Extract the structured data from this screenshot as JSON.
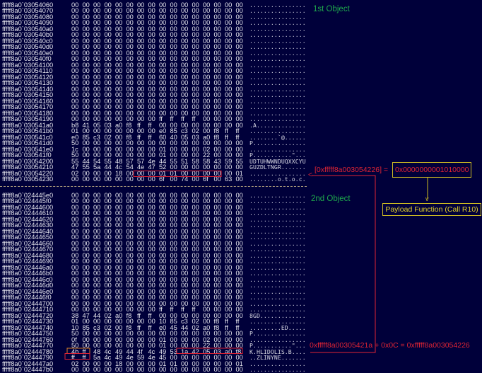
{
  "colors": {
    "background": "#00003a",
    "hex_text": "#e6e6ee",
    "annotation_red": "#e02434",
    "annotation_green": "#1ea84c",
    "annotation_yellow": "#cdbb22",
    "highlight_orange": "#d8822a"
  },
  "first_object": {
    "label": "1st Object",
    "rows": [
      {
        "addr": "fffff8a0`03054060",
        "bytes": "00 00 00 00 00 00 00 00 00 00 00 00 00 00 00 00",
        "ascii": "................"
      },
      {
        "addr": "fffff8a0`03054070",
        "bytes": "00 00 00 00 00 00 00 00 00 00 00 00 00 00 00 00",
        "ascii": "................"
      },
      {
        "addr": "fffff8a0`03054080",
        "bytes": "00 00 00 00 00 00 00 00 00 00 00 00 00 00 00 00",
        "ascii": "................"
      },
      {
        "addr": "fffff8a0`03054090",
        "bytes": "00 00 00 00 00 00 00 00 00 00 00 00 00 00 00 00",
        "ascii": "................"
      },
      {
        "addr": "fffff8a0`030540a0",
        "bytes": "00 00 00 00 00 00 00 00 00 00 00 00 00 00 00 00",
        "ascii": "................"
      },
      {
        "addr": "fffff8a0`030540b0",
        "bytes": "00 00 00 00 00 00 00 00 00 00 00 00 00 00 00 00",
        "ascii": "................"
      },
      {
        "addr": "fffff8a0`030540c0",
        "bytes": "00 00 00 00 00 00 00 00 00 00 00 00 00 00 00 00",
        "ascii": "................"
      },
      {
        "addr": "fffff8a0`030540d0",
        "bytes": "00 00 00 00 00 00 00 00 00 00 00 00 00 00 00 00",
        "ascii": "................"
      },
      {
        "addr": "fffff8a0`030540e0",
        "bytes": "00 00 00 00 00 00 00 00 00 00 00 00 00 00 00 00",
        "ascii": "................"
      },
      {
        "addr": "fffff8a0`030540f0",
        "bytes": "00 00 00 00 00 00 00 00 00 00 00 00 00 00 00 00",
        "ascii": "................"
      },
      {
        "addr": "fffff8a0`03054100",
        "bytes": "00 00 00 00 00 00 00 00 00 00 00 00 00 00 00 00",
        "ascii": "................"
      },
      {
        "addr": "fffff8a0`03054110",
        "bytes": "00 00 00 00 00 00 00 00 00 00 00 00 00 00 00 00",
        "ascii": "................"
      },
      {
        "addr": "fffff8a0`03054120",
        "bytes": "00 00 00 00 00 00 00 00 00 00 00 00 00 00 00 00",
        "ascii": "................"
      },
      {
        "addr": "fffff8a0`03054130",
        "bytes": "00 00 00 00 00 00 00 00 00 00 00 00 00 00 00 00",
        "ascii": "................"
      },
      {
        "addr": "fffff8a0`03054140",
        "bytes": "00 00 00 00 00 00 00 00 00 00 00 00 00 00 00 00",
        "ascii": "................"
      },
      {
        "addr": "fffff8a0`03054150",
        "bytes": "00 00 00 00 00 00 00 00 00 00 00 00 00 00 00 00",
        "ascii": "................"
      },
      {
        "addr": "fffff8a0`03054160",
        "bytes": "00 00 00 00 00 00 00 00 00 00 00 00 00 00 00 00",
        "ascii": "................"
      },
      {
        "addr": "fffff8a0`03054170",
        "bytes": "00 00 00 00 00 00 00 00 00 00 00 00 00 00 00 00",
        "ascii": "................"
      },
      {
        "addr": "fffff8a0`03054180",
        "bytes": "00 00 00 00 00 00 00 00 00 00 00 00 00 00 00 00",
        "ascii": "................"
      },
      {
        "addr": "fffff8a0`03054190",
        "bytes": "00 00 00 00 00 00 00 00 ff ff ff ff 00 00 00 00",
        "ascii": "................"
      },
      {
        "addr": "fffff8a0`030541a0",
        "bytes": "b8 41 05 03 a0 f8 ff ff 00 00 00 00 00 00 00 00",
        "ascii": ".A.............."
      },
      {
        "addr": "fffff8a0`030541b0",
        "bytes": "01 00 00 00 00 00 00 00 e0 85 c3 02 00 f8 ff ff",
        "ascii": "................"
      },
      {
        "addr": "fffff8a0`030541c0",
        "bytes": "e0 85 c3 02 00 f8 ff ff 60 40 05 03 a0 f8 ff ff",
        "ascii": "........`@......"
      },
      {
        "addr": "fffff8a0`030541d0",
        "bytes": "50 00 00 00 00 00 00 00 00 00 00 00 00 00 00 00",
        "ascii": "P..............."
      },
      {
        "addr": "fffff8a0`030541e0",
        "bytes": "1c 00 00 00 00 00 00 00 01 00 00 00 02 00 00 00",
        "ascii": "................"
      },
      {
        "addr": "fffff8a0`030541f0",
        "bytes": "50 00 00 00 00 00 00 00 01 00 00 00 22 00 00 00",
        "ascii": "P...........\"..."
      },
      {
        "addr": "fffff8a0`03054200",
        "bytes": "55 44 54 55 48 57 57 4e 44 55 51 58 58 43 59 55",
        "ascii": "UDTUHWWNDUQXXCYU"
      },
      {
        "addr": "fffff8a0`03054210",
        "bytes": "47 55 5a 44 4c 54 4e 47 52 00 00 00 00 00 00 00",
        "ascii": "GUZDLTNGR......."
      },
      {
        "addr": "fffff8a0`03054220",
        "bytes": "02 00 00 00 18 00 00 00 01 01 00 00 00 00 00 01",
        "ascii": "................"
      },
      {
        "addr": "fffff8a0`03054230",
        "bytes": "00 00 00 00 00 00 00 00 6f 00 74 00 6f 00 63 00",
        "ascii": "........o.t.o.c."
      }
    ]
  },
  "second_object": {
    "label": "2nd Object",
    "rows": [
      {
        "addr": "fffff8a0`024445e0",
        "bytes": "00 00 00 00 00 00 00 00 00 00 00 00 00 00 00 00",
        "ascii": "................"
      },
      {
        "addr": "fffff8a0`024445f0",
        "bytes": "00 00 00 00 00 00 00 00 00 00 00 00 00 00 00 00",
        "ascii": "................"
      },
      {
        "addr": "fffff8a0`02444600",
        "bytes": "00 00 00 00 00 00 00 00 00 00 00 00 00 00 00 00",
        "ascii": "................"
      },
      {
        "addr": "fffff8a0`02444610",
        "bytes": "00 00 00 00 00 00 00 00 00 00 00 00 00 00 00 00",
        "ascii": "................"
      },
      {
        "addr": "fffff8a0`02444620",
        "bytes": "00 00 00 00 00 00 00 00 00 00 00 00 00 00 00 00",
        "ascii": "................"
      },
      {
        "addr": "fffff8a0`02444630",
        "bytes": "00 00 00 00 00 00 00 00 00 00 00 00 00 00 00 00",
        "ascii": "................"
      },
      {
        "addr": "fffff8a0`02444640",
        "bytes": "00 00 00 00 00 00 00 00 00 00 00 00 00 00 00 00",
        "ascii": "................"
      },
      {
        "addr": "fffff8a0`02444650",
        "bytes": "00 00 00 00 00 00 00 00 00 00 00 00 00 00 00 00",
        "ascii": "................"
      },
      {
        "addr": "fffff8a0`02444660",
        "bytes": "00 00 00 00 00 00 00 00 00 00 00 00 00 00 00 00",
        "ascii": "................"
      },
      {
        "addr": "fffff8a0`02444670",
        "bytes": "00 00 00 00 00 00 00 00 00 00 00 00 00 00 00 00",
        "ascii": "................"
      },
      {
        "addr": "fffff8a0`02444680",
        "bytes": "00 00 00 00 00 00 00 00 00 00 00 00 00 00 00 00",
        "ascii": "................"
      },
      {
        "addr": "fffff8a0`02444690",
        "bytes": "00 00 00 00 00 00 00 00 00 00 00 00 00 00 00 00",
        "ascii": "................"
      },
      {
        "addr": "fffff8a0`024446a0",
        "bytes": "00 00 00 00 00 00 00 00 00 00 00 00 00 00 00 00",
        "ascii": "................"
      },
      {
        "addr": "fffff8a0`024446b0",
        "bytes": "00 00 00 00 00 00 00 00 00 00 00 00 00 00 00 00",
        "ascii": "................"
      },
      {
        "addr": "fffff8a0`024446c0",
        "bytes": "00 00 00 00 00 00 00 00 00 00 00 00 00 00 00 00",
        "ascii": "................"
      },
      {
        "addr": "fffff8a0`024446d0",
        "bytes": "00 00 00 00 00 00 00 00 00 00 00 00 00 00 00 00",
        "ascii": "................"
      },
      {
        "addr": "fffff8a0`024446e0",
        "bytes": "00 00 00 00 00 00 00 00 00 00 00 00 00 00 00 00",
        "ascii": "................"
      },
      {
        "addr": "fffff8a0`024446f0",
        "bytes": "00 00 00 00 00 00 00 00 00 00 00 00 00 00 00 00",
        "ascii": "................"
      },
      {
        "addr": "fffff8a0`02444700",
        "bytes": "00 00 00 00 00 00 00 00 00 00 00 00 00 00 00 00",
        "ascii": "................"
      },
      {
        "addr": "fffff8a0`02444710",
        "bytes": "00 00 00 00 00 00 00 00 ff ff ff ff 00 00 00 00",
        "ascii": "................"
      },
      {
        "addr": "fffff8a0`02444720",
        "bytes": "38 47 44 02 a0 f8 ff ff 00 00 00 00 00 00 00 00",
        "ascii": "8GD............."
      },
      {
        "addr": "fffff8a0`02444730",
        "bytes": "01 00 00 00 00 00 00 00 10 85 c3 02 00 f8 ff ff",
        "ascii": "................"
      },
      {
        "addr": "fffff8a0`02444740",
        "bytes": "10 85 c3 02 00 f8 ff ff e0 45 44 02 a0 f8 ff ff",
        "ascii": ".........ED....."
      },
      {
        "addr": "fffff8a0`02444750",
        "bytes": "50 00 00 00 00 00 00 00 00 00 00 00 00 00 00 00",
        "ascii": "P..............."
      },
      {
        "addr": "fffff8a0`02444760",
        "bytes": "0f 00 00 00 00 00 00 00 01 00 00 00 02 00 00 00",
        "ascii": "................"
      },
      {
        "addr": "fffff8a0`02444770",
        "bytes": "50 00 00 00 00 00 00 00 01 00 00 00 22 00 00 00",
        "ascii": "P...........\"..."
      },
      {
        "addr": "fffff8a0`02444780",
        "bytes": "4b ff 48 4c 49 44 4f 4c 49 53 1a 42 05 03 a0 f8",
        "ascii": "K.HLIDOLIS.B...."
      },
      {
        "addr": "fffff8a0`02444790",
        "bytes": "ff ff 5a 4c 49 4e 59 4e 45 00 00 00 00 00 00 00",
        "ascii": "..ZLINYNE......."
      },
      {
        "addr": "fffff8a0`024447a0",
        "bytes": "02 00 00 00 18 00 00 00 01 01 00 00 00 00 00 01",
        "ascii": "................"
      },
      {
        "addr": "fffff8a0`024447b0",
        "bytes": "00 00 00 00 00 00 00 00 00 00 00 00 00 00 00 00",
        "ascii": "................"
      }
    ]
  },
  "annotations": {
    "deref_left": "[0xfffff8a003054226] =",
    "deref_value": "0x0000000001010000",
    "arrow_down": "v",
    "arrow_left": "<",
    "payload": "Payload Function (Call R10)",
    "calc_base": "0xfffff8a00305421a",
    "calc_rest": " + 0x0C = 0xfffff8a003054226"
  }
}
